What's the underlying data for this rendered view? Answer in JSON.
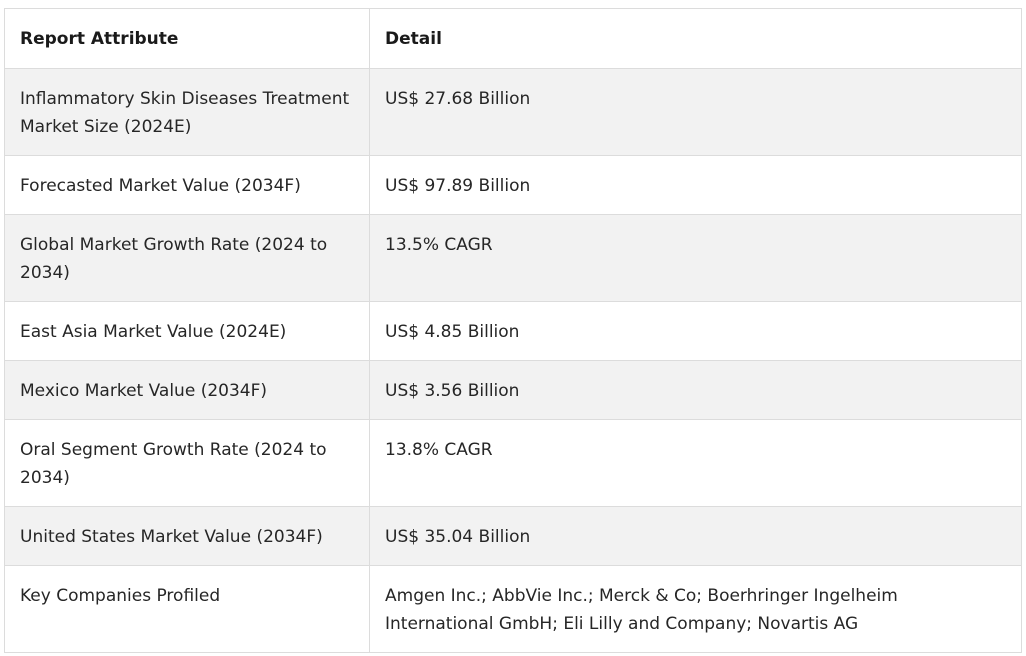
{
  "table": {
    "headers": [
      "Report Attribute",
      "Detail"
    ],
    "rows": [
      {
        "attribute": "Inflammatory Skin Diseases Treatment Market Size (2024E)",
        "detail": "US$ 27.68 Billion"
      },
      {
        "attribute": "Forecasted Market Value (2034F)",
        "detail": "US$ 97.89 Billion"
      },
      {
        "attribute": "Global Market Growth Rate (2024 to 2034)",
        "detail": "13.5% CAGR"
      },
      {
        "attribute": "East Asia Market Value (2024E)",
        "detail": "US$ 4.85 Billion"
      },
      {
        "attribute": "Mexico Market Value (2034F)",
        "detail": "US$ 3.56 Billion"
      },
      {
        "attribute": "Oral Segment Growth Rate (2024 to 2034)",
        "detail": "13.8% CAGR"
      },
      {
        "attribute": "United States Market Value (2034F)",
        "detail": "US$ 35.04 Billion"
      },
      {
        "attribute": "Key Companies Profiled",
        "detail": "Amgen Inc.; AbbVie Inc.; Merck & Co; Boerhringer Ingelheim International GmbH; Eli Lilly and Company; Novartis AG"
      }
    ]
  },
  "colors": {
    "border": "#dcdcdc",
    "alt_row": "#f2f2f2",
    "text": "#262626"
  }
}
